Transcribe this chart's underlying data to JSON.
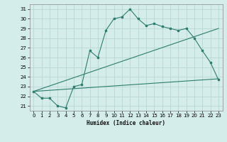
{
  "xlabel": "Humidex (Indice chaleur)",
  "bg_color": "#d4ecea",
  "line_color": "#2e7d6e",
  "grid_color": "#b8d8d4",
  "xlim": [
    -0.5,
    23.5
  ],
  "ylim": [
    20.5,
    31.5
  ],
  "xticks": [
    0,
    1,
    2,
    3,
    4,
    5,
    6,
    7,
    8,
    9,
    10,
    11,
    12,
    13,
    14,
    15,
    16,
    17,
    18,
    19,
    20,
    21,
    22,
    23
  ],
  "yticks": [
    21,
    22,
    23,
    24,
    25,
    26,
    27,
    28,
    29,
    30,
    31
  ],
  "line1_x": [
    0,
    1,
    2,
    3,
    4,
    5,
    6,
    7,
    8,
    9,
    10,
    11,
    12,
    13,
    14,
    15,
    16,
    17,
    18,
    19,
    20,
    21,
    22,
    23
  ],
  "line1_y": [
    22.5,
    21.8,
    21.8,
    21.0,
    20.8,
    23.0,
    23.2,
    26.7,
    26.0,
    28.8,
    30.0,
    30.2,
    31.0,
    30.0,
    29.3,
    29.5,
    29.2,
    29.0,
    28.8,
    29.0,
    28.0,
    26.7,
    25.5,
    23.7
  ],
  "line2_x": [
    0,
    23
  ],
  "line2_y": [
    22.5,
    29.0
  ],
  "line3_x": [
    0,
    23
  ],
  "line3_y": [
    22.5,
    23.8
  ]
}
